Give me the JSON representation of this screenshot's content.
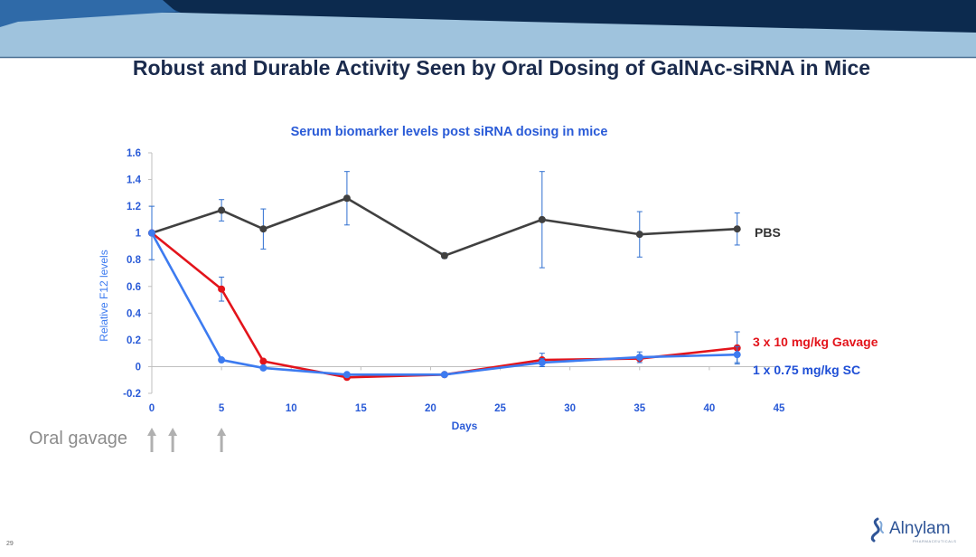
{
  "slide": {
    "title": "Robust and Durable Activity Seen by Oral Dosing of GalNAc-siRNA in Mice",
    "page_number": "29",
    "logo_text": "Alnylam",
    "logo_tagline": "PHARMACEUTICALS",
    "oral_label": "Oral gavage",
    "oral_arrows_x": [
      0,
      1.5,
      5
    ],
    "colors": {
      "header_dark": "#0c2a4e",
      "header_mid": "#1d4f86",
      "header_light": "#9fc3dd",
      "title": "#1b2b4d",
      "axis_text": "#2a5bd7",
      "arrow": "#b0b0b0"
    }
  },
  "chart_data": {
    "type": "line",
    "title": "Serum biomarker levels post siRNA dosing in mice",
    "xlabel": "Days",
    "ylabel": "Relative F12 levels",
    "xlim": [
      0,
      45
    ],
    "ylim": [
      -0.2,
      1.6
    ],
    "xticks": [
      "0",
      "5",
      "10",
      "15",
      "20",
      "25",
      "30",
      "35",
      "40",
      "45"
    ],
    "yticks": [
      "-0.2",
      "0",
      "0.2",
      "0.4",
      "0.6",
      "0.8",
      "1",
      "1.2",
      "1.4",
      "1.6"
    ],
    "grid": false,
    "legend": "direct labels at right end of each line",
    "series": [
      {
        "name": "PBS",
        "color": "#404040",
        "label_color": "#333333",
        "x": [
          0,
          5,
          8,
          14,
          21,
          28,
          35,
          42
        ],
        "y": [
          1.0,
          1.17,
          1.03,
          1.26,
          0.83,
          1.1,
          0.99,
          1.03
        ],
        "err_up": [
          0.2,
          0.08,
          0.15,
          0.2,
          0.02,
          0.36,
          0.17,
          0.12
        ],
        "err_down": [
          0.2,
          0.08,
          0.15,
          0.2,
          0.02,
          0.36,
          0.17,
          0.12
        ]
      },
      {
        "name": "3 x 10 mg/kg Gavage",
        "color": "#e3141b",
        "label_color": "#e3141b",
        "x": [
          0,
          5,
          8,
          14,
          21,
          28,
          35,
          42
        ],
        "y": [
          1.0,
          0.58,
          0.04,
          -0.08,
          -0.06,
          0.05,
          0.06,
          0.14
        ],
        "err_up": [
          0,
          0.09,
          0,
          0,
          0,
          0.05,
          0,
          0.12
        ],
        "err_down": [
          0,
          0.09,
          0,
          0,
          0,
          0.05,
          0,
          0.12
        ]
      },
      {
        "name": "1 x 0.75 mg/kg SC",
        "color": "#3d7bf0",
        "label_color": "#1f4fd6",
        "x": [
          0,
          5,
          8,
          14,
          21,
          28,
          35,
          42
        ],
        "y": [
          1.0,
          0.05,
          -0.01,
          -0.06,
          -0.06,
          0.03,
          0.07,
          0.09
        ],
        "err_up": [
          0,
          0,
          0,
          0,
          0,
          0.03,
          0.04,
          0.06
        ],
        "err_down": [
          0,
          0,
          0,
          0,
          0,
          0.03,
          0.04,
          0.06
        ]
      }
    ]
  }
}
